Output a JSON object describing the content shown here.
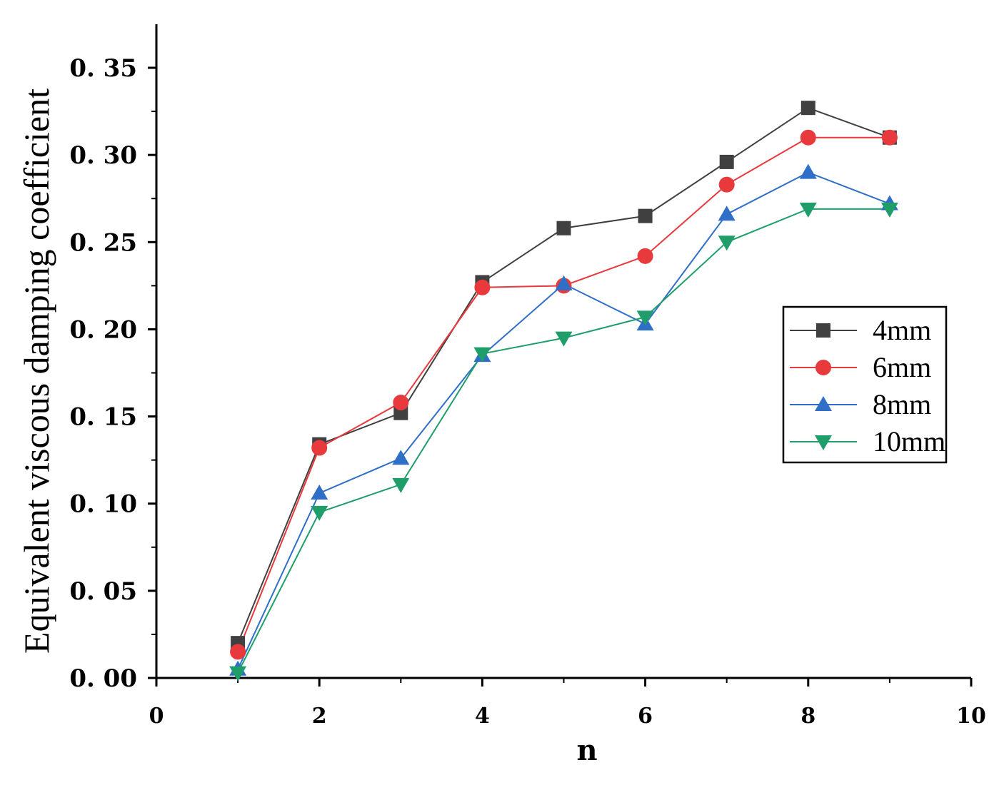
{
  "chart_data": {
    "type": "line",
    "title": "",
    "xlabel": "n",
    "ylabel": "Equivalent viscous damping coefficient",
    "xlim": [
      0,
      10
    ],
    "ylim": [
      0,
      0.37
    ],
    "x_ticks": [
      0,
      2,
      4,
      6,
      8,
      10
    ],
    "x_tick_labels": [
      "0",
      "2",
      "4",
      "6",
      "8",
      "10"
    ],
    "y_ticks": [
      0.0,
      0.05,
      0.1,
      0.15,
      0.2,
      0.25,
      0.3,
      0.35
    ],
    "y_tick_labels": [
      "0. 00",
      "0. 05",
      "0. 10",
      "0. 15",
      "0. 20",
      "0. 25",
      "0. 30",
      "0. 35"
    ],
    "grid": false,
    "legend_position": "right-middle",
    "x": [
      1,
      2,
      3,
      4,
      5,
      6,
      7,
      8,
      9
    ],
    "series": [
      {
        "name": "4mm",
        "color": "#404040",
        "marker": "square",
        "values": [
          0.02,
          0.134,
          0.152,
          0.227,
          0.258,
          0.265,
          0.296,
          0.327,
          0.31
        ]
      },
      {
        "name": "6mm",
        "color": "#e8393d",
        "marker": "circle",
        "values": [
          0.015,
          0.132,
          0.158,
          0.224,
          0.225,
          0.242,
          0.283,
          0.31,
          0.31
        ]
      },
      {
        "name": "8mm",
        "color": "#2f6fc8",
        "marker": "triangle-up",
        "values": [
          0.005,
          0.106,
          0.126,
          0.185,
          0.226,
          0.203,
          0.266,
          0.29,
          0.272
        ]
      },
      {
        "name": "10mm",
        "color": "#1f9e6a",
        "marker": "triangle-down",
        "values": [
          0.003,
          0.095,
          0.111,
          0.186,
          0.195,
          0.207,
          0.25,
          0.269,
          0.269
        ]
      }
    ]
  }
}
